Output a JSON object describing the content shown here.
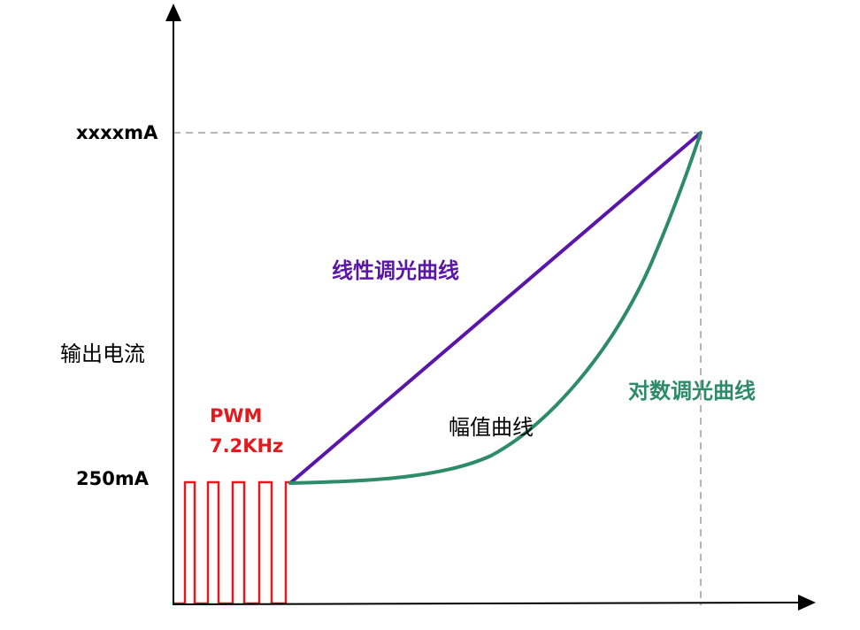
{
  "axes": {
    "y_label": "输出电流",
    "y_top_tick": "xxxxmA",
    "y_low_tick": "250mA"
  },
  "pwm": {
    "line1": "PWM",
    "line2": "7.2KHz",
    "color": "#e31a1c"
  },
  "curves": {
    "linear_label": "线性调光曲线",
    "linear_color": "#5a16a8",
    "log_label": "对数调光曲线",
    "log_color": "#2e8b6a",
    "amplitude_label": "幅值曲线"
  },
  "colors": {
    "axis": "#000000",
    "guide": "#9e9e9e",
    "text": "#000000"
  }
}
